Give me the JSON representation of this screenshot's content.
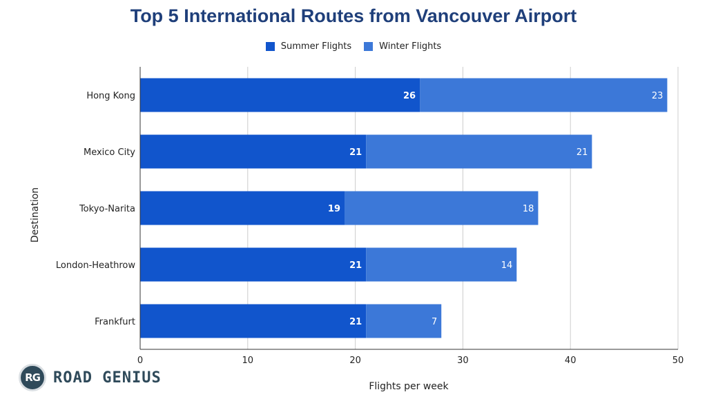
{
  "chart_data": {
    "type": "bar",
    "orientation": "horizontal",
    "stacked": true,
    "title": "Top 5 International Routes from Vancouver Airport",
    "xlabel": "Flights per week",
    "ylabel": "Destination",
    "categories": [
      "Hong Kong",
      "Mexico City",
      "Tokyo-Narita",
      "London-Heathrow",
      "Frankfurt"
    ],
    "series": [
      {
        "name": "Summer Flights",
        "values": [
          26,
          21,
          19,
          21,
          21
        ],
        "color": "#1155cc"
      },
      {
        "name": "Winter Flights",
        "values": [
          23,
          21,
          18,
          14,
          7
        ],
        "color": "#3c78d8"
      }
    ],
    "xlim": [
      0,
      50
    ],
    "xticks": [
      0,
      10,
      20,
      30,
      40,
      50
    ],
    "grid": true,
    "legend_position": "top"
  },
  "branding": {
    "badge": "RG",
    "name": "ROAD GENIUS"
  }
}
